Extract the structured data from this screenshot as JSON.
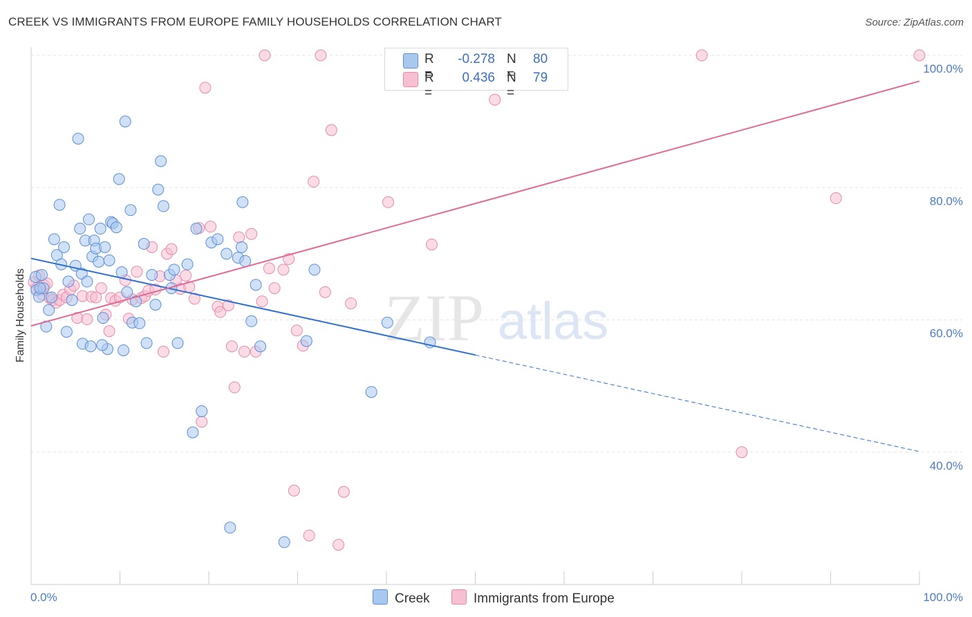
{
  "title": "CREEK VS IMMIGRANTS FROM EUROPE FAMILY HOUSEHOLDS CORRELATION CHART",
  "source": "Source: ZipAtlas.com",
  "watermark": {
    "zip": "ZIP",
    "atlas": "atlas"
  },
  "legend": {
    "r_label": "R =",
    "n_label": "N =",
    "rows": [
      {
        "name": "Creek",
        "r": "-0.278",
        "n": "80"
      },
      {
        "name": "Immigrants from Europe",
        "r": "0.436",
        "n": "79"
      }
    ]
  },
  "colors": {
    "creek_fill": "#a9c8f0",
    "creek_stroke": "#5b8fd6",
    "creek_line": "#2f6fd0",
    "europe_fill": "#f7c0d2",
    "europe_stroke": "#e889aa",
    "europe_line": "#e06a97",
    "tick_text": "#4a7cc9",
    "grid": "#e3e3e3"
  },
  "chart_data": {
    "type": "scatter",
    "title": "CREEK VS IMMIGRANTS FROM EUROPE FAMILY HOUSEHOLDS CORRELATION CHART",
    "xlabel": "",
    "ylabel": "Family Households",
    "xlim": [
      0,
      100
    ],
    "ylim": [
      20,
      100
    ],
    "x_tick_labels": [
      "0.0%",
      "100.0%"
    ],
    "y_ticks": [
      40,
      60,
      80,
      100
    ],
    "y_tick_labels": [
      "40.0%",
      "60.0%",
      "80.0%",
      "100.0%"
    ],
    "grid": true,
    "legend_position": "top-center",
    "series": [
      {
        "name": "Creek",
        "r": -0.278,
        "n": 80,
        "trend": {
          "x0": 0,
          "y0": 69.3,
          "x1": 50,
          "y1": 54.7,
          "dashed_to_x": 100,
          "dashed_to_y": 40.1
        },
        "points": [
          [
            0.5,
            66.5
          ],
          [
            0.6,
            64.5
          ],
          [
            0.9,
            63.5
          ],
          [
            1.2,
            66.8
          ],
          [
            1.4,
            64.8
          ],
          [
            1.7,
            59.0
          ],
          [
            2.0,
            61.5
          ],
          [
            2.3,
            63.4
          ],
          [
            2.6,
            72.2
          ],
          [
            2.9,
            69.8
          ],
          [
            3.2,
            77.4
          ],
          [
            3.4,
            68.4
          ],
          [
            3.7,
            71.0
          ],
          [
            4.0,
            58.2
          ],
          [
            4.2,
            65.8
          ],
          [
            4.6,
            63.0
          ],
          [
            5.0,
            68.2
          ],
          [
            5.3,
            87.4
          ],
          [
            5.5,
            73.8
          ],
          [
            5.7,
            67.0
          ],
          [
            5.8,
            56.4
          ],
          [
            6.1,
            72.0
          ],
          [
            6.3,
            65.8
          ],
          [
            6.5,
            75.2
          ],
          [
            6.7,
            56.0
          ],
          [
            6.9,
            69.6
          ],
          [
            7.1,
            72.0
          ],
          [
            7.3,
            70.8
          ],
          [
            7.6,
            68.8
          ],
          [
            7.8,
            73.8
          ],
          [
            8.1,
            60.3
          ],
          [
            8.3,
            71.0
          ],
          [
            8.6,
            55.6
          ],
          [
            8.8,
            69.0
          ],
          [
            9.0,
            74.8
          ],
          [
            9.2,
            74.6
          ],
          [
            9.6,
            74.0
          ],
          [
            9.9,
            81.3
          ],
          [
            10.2,
            67.2
          ],
          [
            10.4,
            55.4
          ],
          [
            10.6,
            90.0
          ],
          [
            10.8,
            64.2
          ],
          [
            11.2,
            76.6
          ],
          [
            11.4,
            59.6
          ],
          [
            11.8,
            62.8
          ],
          [
            12.2,
            59.5
          ],
          [
            12.7,
            71.5
          ],
          [
            13.0,
            56.5
          ],
          [
            13.6,
            66.8
          ],
          [
            14.0,
            62.3
          ],
          [
            14.3,
            79.7
          ],
          [
            14.6,
            84.0
          ],
          [
            14.9,
            77.2
          ],
          [
            15.6,
            66.8
          ],
          [
            15.8,
            64.8
          ],
          [
            16.1,
            67.6
          ],
          [
            16.5,
            56.5
          ],
          [
            17.6,
            68.4
          ],
          [
            18.2,
            43.0
          ],
          [
            18.6,
            73.8
          ],
          [
            19.2,
            46.2
          ],
          [
            20.3,
            71.7
          ],
          [
            21.0,
            72.2
          ],
          [
            22.0,
            70.0
          ],
          [
            22.4,
            28.6
          ],
          [
            23.3,
            69.4
          ],
          [
            23.7,
            71.0
          ],
          [
            23.8,
            77.8
          ],
          [
            24.1,
            68.9
          ],
          [
            24.8,
            59.8
          ],
          [
            25.3,
            65.3
          ],
          [
            25.8,
            56.0
          ],
          [
            28.5,
            26.4
          ],
          [
            31.0,
            56.8
          ],
          [
            31.9,
            67.6
          ],
          [
            38.3,
            49.1
          ],
          [
            40.1,
            59.6
          ],
          [
            44.9,
            56.6
          ],
          [
            1.0,
            64.8
          ],
          [
            8.0,
            56.2
          ]
        ]
      },
      {
        "name": "Immigrants from Europe",
        "r": 0.436,
        "n": 79,
        "trend": {
          "x0": 0,
          "y0": 59.1,
          "x1": 100,
          "y1": 96.1
        },
        "points": [
          [
            0.3,
            65.7
          ],
          [
            0.6,
            64.8
          ],
          [
            0.9,
            66.7
          ],
          [
            1.1,
            64.6
          ],
          [
            1.3,
            63.8
          ],
          [
            1.5,
            65.2
          ],
          [
            1.8,
            65.5
          ],
          [
            2.1,
            63.3
          ],
          [
            2.4,
            63.0
          ],
          [
            2.8,
            62.6
          ],
          [
            3.2,
            63.0
          ],
          [
            3.6,
            63.8
          ],
          [
            4.0,
            63.4
          ],
          [
            4.4,
            64.6
          ],
          [
            4.8,
            65.2
          ],
          [
            5.2,
            60.3
          ],
          [
            5.8,
            63.6
          ],
          [
            6.3,
            60.1
          ],
          [
            6.8,
            63.5
          ],
          [
            7.3,
            63.4
          ],
          [
            7.9,
            64.8
          ],
          [
            8.4,
            60.8
          ],
          [
            8.8,
            58.3
          ],
          [
            9.0,
            63.3
          ],
          [
            9.5,
            62.9
          ],
          [
            10.0,
            63.4
          ],
          [
            10.6,
            66.0
          ],
          [
            11.0,
            60.2
          ],
          [
            11.4,
            63.1
          ],
          [
            11.9,
            67.3
          ],
          [
            12.4,
            63.3
          ],
          [
            12.8,
            63.6
          ],
          [
            13.2,
            64.4
          ],
          [
            13.6,
            71.0
          ],
          [
            14.0,
            64.6
          ],
          [
            14.5,
            66.6
          ],
          [
            14.9,
            55.2
          ],
          [
            15.3,
            70.0
          ],
          [
            15.8,
            70.7
          ],
          [
            16.3,
            66.0
          ],
          [
            16.8,
            64.7
          ],
          [
            17.4,
            66.7
          ],
          [
            17.8,
            65.0
          ],
          [
            18.4,
            63.2
          ],
          [
            18.9,
            73.9
          ],
          [
            19.2,
            44.6
          ],
          [
            19.6,
            95.1
          ],
          [
            20.2,
            74.1
          ],
          [
            21.0,
            62.0
          ],
          [
            21.3,
            61.2
          ],
          [
            22.2,
            62.2
          ],
          [
            22.6,
            56.0
          ],
          [
            22.9,
            49.8
          ],
          [
            23.4,
            72.5
          ],
          [
            24.0,
            55.2
          ],
          [
            24.8,
            73.0
          ],
          [
            25.3,
            55.2
          ],
          [
            26.0,
            62.8
          ],
          [
            26.3,
            100.0
          ],
          [
            26.8,
            67.8
          ],
          [
            27.4,
            64.8
          ],
          [
            28.4,
            67.6
          ],
          [
            29.0,
            69.2
          ],
          [
            29.6,
            34.2
          ],
          [
            29.9,
            58.4
          ],
          [
            30.6,
            56.1
          ],
          [
            31.3,
            27.4
          ],
          [
            31.8,
            80.9
          ],
          [
            32.6,
            100.0
          ],
          [
            33.1,
            64.2
          ],
          [
            33.8,
            88.7
          ],
          [
            34.6,
            26.0
          ],
          [
            35.2,
            34.0
          ],
          [
            36.0,
            62.5
          ],
          [
            40.2,
            77.8
          ],
          [
            45.1,
            71.4
          ],
          [
            52.2,
            93.3
          ],
          [
            75.5,
            100.0
          ],
          [
            90.6,
            78.4
          ]
        ],
        "extra_points": [
          [
            47.6,
            100.0
          ],
          [
            59.1,
            100.0
          ],
          [
            80.0,
            40.0
          ],
          [
            100.0,
            100.0
          ]
        ]
      }
    ]
  }
}
